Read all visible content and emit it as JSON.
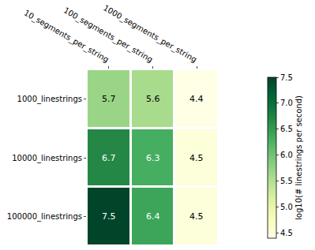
{
  "chart_data": {
    "type": "heatmap",
    "x": [
      "10_segments_per_string",
      "100_segments_per_string",
      "1000_segments_per_string"
    ],
    "y": [
      "1000_linestrings",
      "10000_linestrings",
      "100000_linestrings"
    ],
    "cells": [
      [
        5.7,
        5.6,
        4.4
      ],
      [
        6.7,
        6.3,
        4.5
      ],
      [
        7.5,
        6.4,
        4.5
      ]
    ],
    "data_labels": true,
    "color": "YlGn",
    "colorbar": {
      "title": "log10(# linestrings per second)",
      "range": [
        4.4,
        7.5
      ],
      "ticks": [
        4.5,
        {
          "value": 5,
          "label": "5.0"
        },
        5.5,
        {
          "value": 6,
          "label": "6.0"
        },
        6.5,
        {
          "value": 7,
          "label": "7.0"
        },
        7.5
      ]
    }
  }
}
